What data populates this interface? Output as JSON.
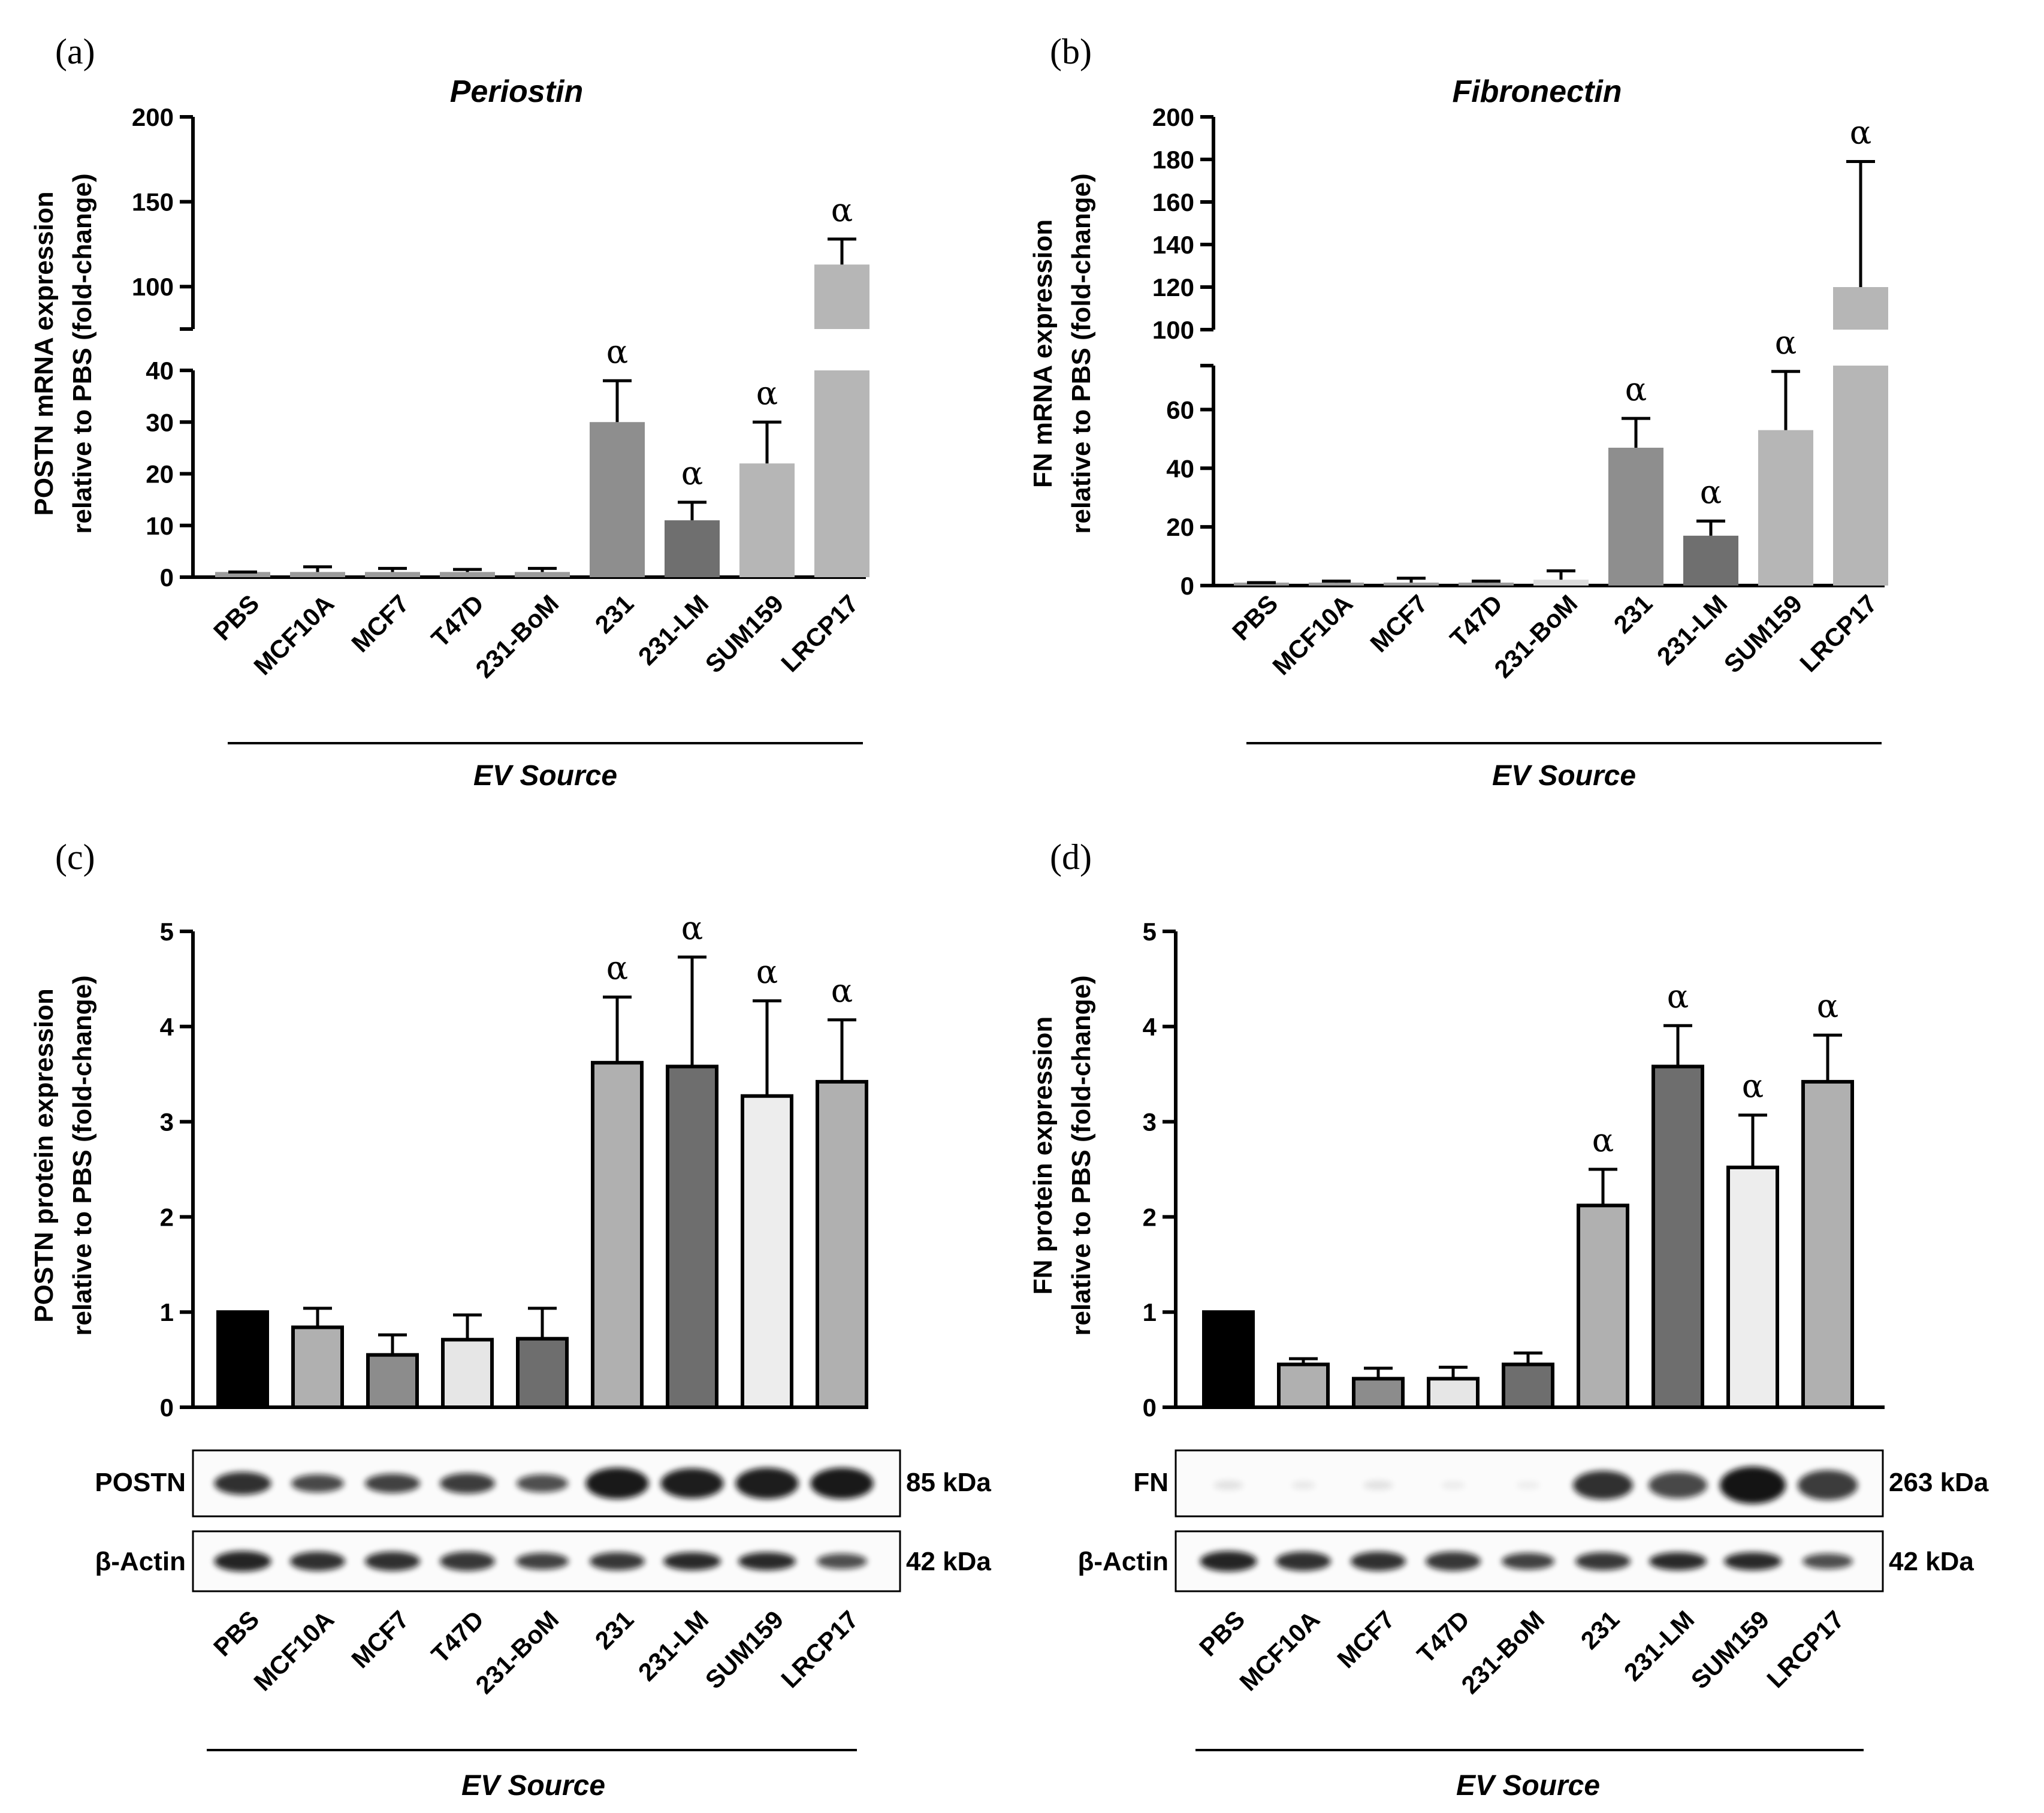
{
  "panels": {
    "a": {
      "label": "(a)",
      "title": "Periostin",
      "ylabel_line1": "POSTN mRNA expression",
      "ylabel_line2": "relative to PBS (fold-change)",
      "xlabel": "EV Source",
      "significance_symbol": "α"
    },
    "b": {
      "label": "(b)",
      "title": "Fibronectin",
      "ylabel_line1": "FN mRNA expression",
      "ylabel_line2": "relative to PBS (fold-change)",
      "xlabel": "EV Source",
      "significance_symbol": "α"
    },
    "c": {
      "label": "(c)",
      "ylabel_line1": "POSTN protein expression",
      "ylabel_line2": "relative to PBS (fold-change)",
      "xlabel": "EV Source",
      "significance_symbol": "α",
      "blots": [
        {
          "name": "POSTN",
          "kda": "85 kDa"
        },
        {
          "name": "β-Actin",
          "kda": "42 kDa"
        }
      ]
    },
    "d": {
      "label": "(d)",
      "ylabel_line1": "FN protein expression",
      "ylabel_line2": "relative to PBS (fold-change)",
      "xlabel": "EV Source",
      "significance_symbol": "α",
      "blots": [
        {
          "name": "FN",
          "kda": "263 kDa"
        },
        {
          "name": "β-Actin",
          "kda": "42 kDa"
        }
      ]
    }
  },
  "chart_data": [
    {
      "id": "a",
      "type": "bar",
      "title": "Periostin",
      "xlabel": "EV Source",
      "ylabel": "POSTN mRNA expression relative to PBS (fold-change)",
      "categories": [
        "PBS",
        "MCF10A",
        "MCF7",
        "T47D",
        "231-BoM",
        "231",
        "231-LM",
        "SUM159",
        "LRCP17"
      ],
      "values": [
        1,
        1,
        1,
        1,
        1,
        30,
        11,
        22,
        113
      ],
      "errors": [
        0,
        1,
        0.7,
        0.5,
        0.7,
        8,
        3.5,
        8,
        15
      ],
      "significant": [
        false,
        false,
        false,
        false,
        false,
        true,
        true,
        true,
        true
      ],
      "bar_colors": [
        "#9b9b9b",
        "#9b9b9b",
        "#9b9b9b",
        "#9b9b9b",
        "#9b9b9b",
        "#8e8e8e",
        "#6f6f6f",
        "#b6b6b6",
        "#b6b6b6"
      ],
      "axis_break": {
        "lower_range": [
          0,
          40
        ],
        "upper_range": [
          75,
          200
        ]
      },
      "lower_ticks": [
        0,
        10,
        20,
        30,
        40
      ],
      "upper_ticks": [
        100,
        150,
        200
      ]
    },
    {
      "id": "b",
      "type": "bar",
      "title": "Fibronectin",
      "xlabel": "EV Source",
      "ylabel": "FN mRNA expression relative to PBS (fold-change)",
      "categories": [
        "PBS",
        "MCF10A",
        "MCF7",
        "T47D",
        "231-BoM",
        "231",
        "231-LM",
        "SUM159",
        "LRCP17"
      ],
      "values": [
        1,
        1,
        1,
        1,
        2,
        47,
        17,
        53,
        120
      ],
      "errors": [
        0,
        0.5,
        1.5,
        0.5,
        3,
        10,
        5,
        20,
        59
      ],
      "significant": [
        false,
        false,
        false,
        false,
        false,
        true,
        true,
        true,
        true
      ],
      "bar_colors": [
        "#9b9b9b",
        "#9b9b9b",
        "#9b9b9b",
        "#9b9b9b",
        "#dcdcdc",
        "#8e8e8e",
        "#6f6f6f",
        "#b6b6b6",
        "#b6b6b6"
      ],
      "axis_break": {
        "lower_range": [
          0,
          75
        ],
        "upper_range": [
          100,
          200
        ]
      },
      "lower_ticks": [
        0,
        20,
        40,
        60
      ],
      "upper_ticks": [
        100,
        120,
        140,
        160,
        180,
        200
      ]
    },
    {
      "id": "c",
      "type": "bar",
      "xlabel": "EV Source",
      "ylabel": "POSTN protein expression relative to PBS (fold-change)",
      "categories": [
        "PBS",
        "MCF10A",
        "MCF7",
        "T47D",
        "231-BoM",
        "231",
        "231-LM",
        "SUM159",
        "LRCP17"
      ],
      "values": [
        1.0,
        0.84,
        0.55,
        0.71,
        0.72,
        3.62,
        3.58,
        3.27,
        3.42
      ],
      "errors": [
        0,
        0.2,
        0.21,
        0.26,
        0.32,
        0.69,
        1.15,
        1.0,
        0.65
      ],
      "significant": [
        false,
        false,
        false,
        false,
        false,
        true,
        true,
        true,
        true
      ],
      "bar_colors": [
        "#000000",
        "#b0b0b0",
        "#8c8c8c",
        "#e6e6e6",
        "#6e6e6e",
        "#b0b0b0",
        "#6e6e6e",
        "#ededed",
        "#b0b0b0"
      ],
      "ylim": [
        0,
        5
      ],
      "ticks": [
        0,
        1,
        2,
        3,
        4,
        5
      ]
    },
    {
      "id": "d",
      "type": "bar",
      "xlabel": "EV Source",
      "ylabel": "FN protein expression relative to PBS (fold-change)",
      "categories": [
        "PBS",
        "MCF10A",
        "MCF7",
        "T47D",
        "231-BoM",
        "231",
        "231-LM",
        "SUM159",
        "LRCP17"
      ],
      "values": [
        1.0,
        0.45,
        0.3,
        0.3,
        0.45,
        2.12,
        3.58,
        2.52,
        3.42
      ],
      "errors": [
        0,
        0.06,
        0.11,
        0.12,
        0.12,
        0.38,
        0.43,
        0.55,
        0.49
      ],
      "significant": [
        false,
        false,
        false,
        false,
        false,
        true,
        true,
        true,
        true
      ],
      "bar_colors": [
        "#000000",
        "#b0b0b0",
        "#8c8c8c",
        "#e6e6e6",
        "#6e6e6e",
        "#b0b0b0",
        "#6e6e6e",
        "#ededed",
        "#b0b0b0"
      ],
      "ylim": [
        0,
        5
      ],
      "ticks": [
        0,
        1,
        2,
        3,
        4,
        5
      ]
    }
  ]
}
